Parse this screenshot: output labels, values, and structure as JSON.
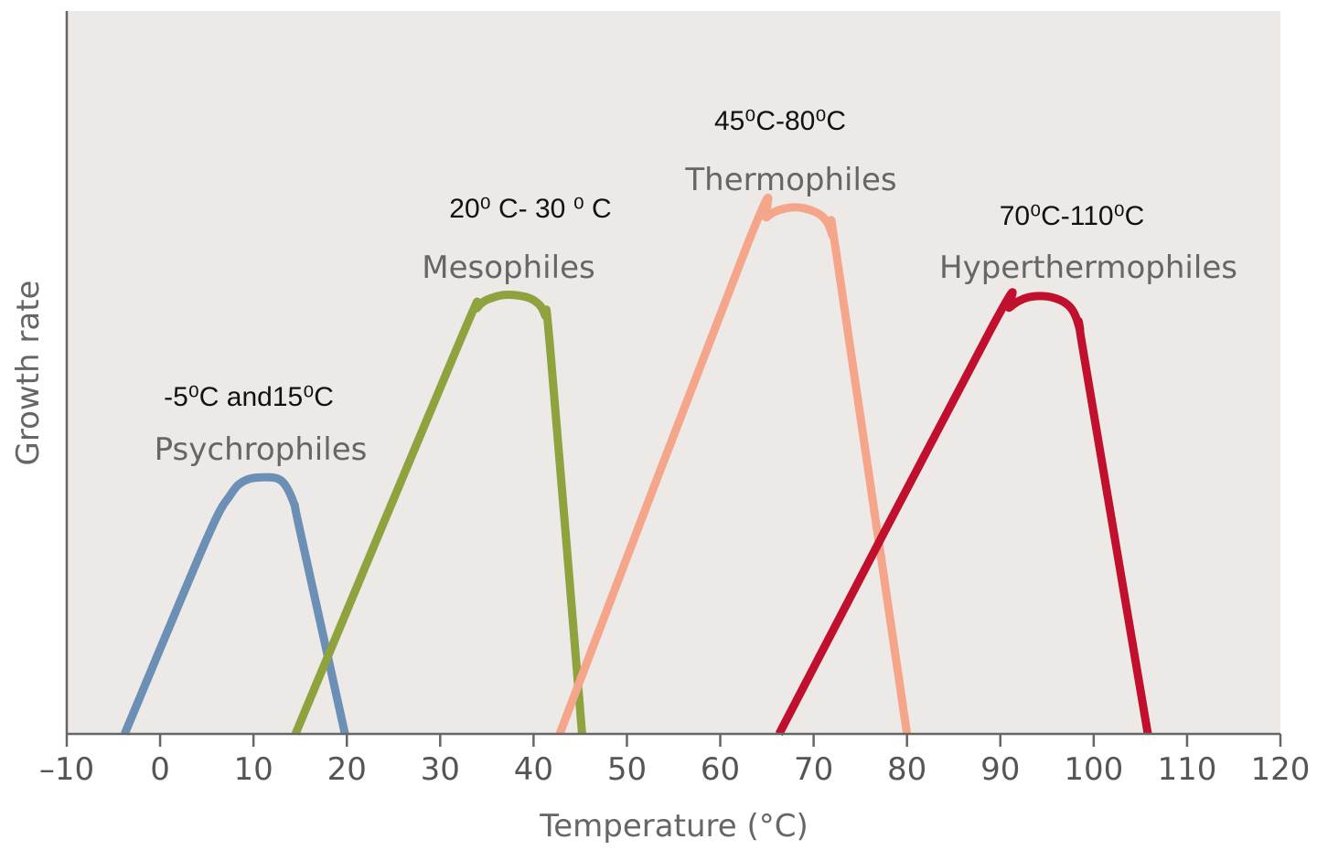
{
  "chart_data": {
    "type": "line",
    "title": "",
    "xlabel": "Temperature (°C)",
    "ylabel": "Growth rate",
    "xlim": [
      -10,
      120
    ],
    "ylim": [
      0,
      1
    ],
    "x_ticks": [
      "–10",
      "0",
      "10",
      "20",
      "30",
      "40",
      "50",
      "60",
      "70",
      "80",
      "90",
      "100",
      "110",
      "120"
    ],
    "grid": false,
    "legend": "none (curves labeled directly)",
    "plot_background": "#ece9e6",
    "series": [
      {
        "name": "Psychrophiles",
        "range_label": "-5⁰C and15⁰C",
        "color": "#6b8fb5",
        "points": [
          [
            -3.8,
            0
          ],
          [
            5,
            0.27
          ],
          [
            7.5,
            0.33
          ],
          [
            9,
            0.35
          ],
          [
            11,
            0.355
          ],
          [
            13,
            0.35
          ],
          [
            14.3,
            0.32
          ],
          [
            15,
            0.28
          ],
          [
            19.8,
            0
          ]
        ]
      },
      {
        "name": "Mesophiles",
        "range_label": "20⁰ C-  30 ⁰ C",
        "color": "#8ea23e",
        "points": [
          [
            14.5,
            0
          ],
          [
            32,
            0.54
          ],
          [
            34,
            0.59
          ],
          [
            36,
            0.605
          ],
          [
            38,
            0.607
          ],
          [
            40,
            0.6
          ],
          [
            41.2,
            0.58
          ],
          [
            41.8,
            0.53
          ],
          [
            45.2,
            0
          ]
        ]
      },
      {
        "name": "Thermophiles",
        "range_label": "45⁰C-80⁰C",
        "color": "#f4a58a",
        "points": [
          [
            42.8,
            0
          ],
          [
            63,
            0.68
          ],
          [
            65,
            0.715
          ],
          [
            67,
            0.727
          ],
          [
            69,
            0.727
          ],
          [
            71,
            0.715
          ],
          [
            72,
            0.69
          ],
          [
            72.6,
            0.65
          ],
          [
            80,
            0
          ]
        ]
      },
      {
        "name": "Hyperthermophiles",
        "range_label": "70⁰C-110⁰C",
        "color": "#c0102e",
        "points": [
          [
            66.3,
            0
          ],
          [
            89,
            0.56
          ],
          [
            91,
            0.59
          ],
          [
            93,
            0.604
          ],
          [
            95.5,
            0.604
          ],
          [
            97.5,
            0.59
          ],
          [
            98.5,
            0.56
          ],
          [
            99,
            0.52
          ],
          [
            105.8,
            0
          ]
        ]
      }
    ]
  }
}
